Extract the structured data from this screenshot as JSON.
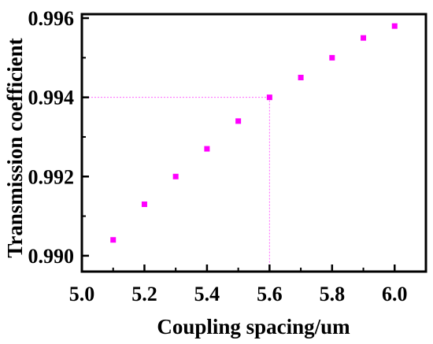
{
  "chart_data": {
    "type": "scatter",
    "title": "",
    "xlabel": "Coupling spacing/um",
    "ylabel": "Transmission coefficient",
    "xlim": [
      5.0,
      6.1
    ],
    "ylim": [
      0.9896,
      0.9961
    ],
    "x_ticks": [
      "5.0",
      "5.2",
      "5.4",
      "5.6",
      "5.8",
      "6.0"
    ],
    "y_ticks": [
      "0.990",
      "0.992",
      "0.994",
      "0.996"
    ],
    "grid": false,
    "legend": "none",
    "marker_color": "#ff00ff",
    "guide_color": "#ff66ff",
    "series": [
      {
        "x": [
          5.1,
          5.2,
          5.3,
          5.4,
          5.5,
          5.6,
          5.7,
          5.8,
          5.9,
          6.0
        ],
        "y": [
          0.9904,
          0.9913,
          0.992,
          0.9927,
          0.9934,
          0.994,
          0.9945,
          0.995,
          0.9955,
          0.9958
        ]
      }
    ],
    "guide_point": {
      "x": 5.6,
      "y": 0.994
    }
  }
}
